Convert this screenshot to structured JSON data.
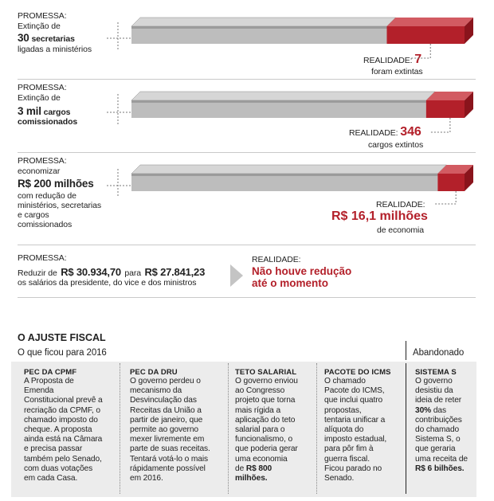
{
  "promises": [
    {
      "label": "PROMESSA:",
      "line1": "Extinção de",
      "big": "30",
      "big_suffix": " secretarias",
      "line3": "ligadas a ministérios",
      "reality_label": "REALIDADE:",
      "reality_value": "7",
      "reality_note": "foram extintas"
    },
    {
      "label": "PROMESSA:",
      "line1": "Extinção de",
      "big": "3 mil",
      "big_suffix": " cargos",
      "line3": "comissionados",
      "reality_label": "REALIDADE:",
      "reality_value": "346",
      "reality_note": "cargos extintos"
    },
    {
      "label": "PROMESSA:",
      "line1": "economizar",
      "big": "R$ 200 milhões",
      "line3": "com redução de",
      "line4": "ministérios, secretarias",
      "line5": "e cargos",
      "line6": "comissionados",
      "reality_label": "REALIDADE:",
      "reality_value": "R$ 16,1 milhões",
      "reality_note": "de economia"
    }
  ],
  "salary": {
    "label": "PROMESSA:",
    "pre": "Reduzir de",
    "from": "R$ 30.934,70",
    "mid": "para",
    "to": "R$ 27.841,23",
    "line2": "os salários da presidente, do vice e dos ministros",
    "reality_label": "REALIDADE:",
    "reality_line1": "Não houve redução",
    "reality_line2": "até o momento"
  },
  "chart_data": {
    "type": "bar",
    "categories": [
      "Secretarias",
      "Cargos comissionados",
      "Economia"
    ],
    "series": [
      {
        "name": "PROMESSA",
        "values": [
          30,
          3000,
          200
        ]
      },
      {
        "name": "REALIDADE",
        "values": [
          7,
          346,
          16.1
        ]
      }
    ]
  },
  "colors": {
    "bar_gray": "#bdbdbd",
    "bar_gray_top": "#9c9c9c",
    "bar_gray_edge": "#8a8a8a",
    "bar_red": "#b3202a",
    "bar_red_top": "#d25b62",
    "bar_red_side": "#8a141c",
    "panel": "#ececec"
  },
  "fiscal": {
    "title": "O AJUSTE FISCAL",
    "subtitle": "O que ficou para 2016",
    "abandoned": "Abandonado",
    "columns": [
      {
        "title": "PEC DA CPMF",
        "lines": [
          "A Proposta de",
          "Emenda",
          "Constitucional prevê a",
          "recriação da CPMF, o",
          "chamado imposto do",
          "cheque. A proposta",
          "ainda está na Câmara",
          "e precisa passar",
          "também pelo Senado,",
          "com duas votações",
          "em cada Casa."
        ]
      },
      {
        "title": "PEC DA DRU",
        "lines": [
          "O governo perdeu o",
          "mecanismo da",
          "Desvinculação das",
          "Receitas da União a",
          "partir de janeiro, que",
          "permite ao governo",
          "mexer livremente em",
          "parte de suas receitas.",
          "Tentará votá-lo o mais",
          "rápidamente possível",
          "em 2016."
        ]
      },
      {
        "title": "TETO SALARIAL",
        "lines": [
          "O governo enviou",
          "ao Congresso",
          "projeto que torna",
          "mais rígida a",
          "aplicação do teto",
          "salarial para o",
          "funcionalismo, o",
          "que poderia gerar",
          "uma economia",
          "de",
          "milhões."
        ],
        "highlight_pre": "de ",
        "highlight": "R$ 800",
        "highlight_post": "milhões."
      },
      {
        "title": "PACOTE DO ICMS",
        "lines": [
          "O chamado",
          "Pacote do ICMS,",
          "que inclui quatro",
          "propostas,",
          "tentaria unificar a",
          "alíquota do",
          "imposto estadual,",
          "para pôr fim à",
          "guerra fiscal.",
          "Ficou parado no",
          "Senado."
        ]
      },
      {
        "title": "SISTEMA S",
        "lines": [
          "O governo",
          "desistiu da",
          "ideia de reter",
          "das",
          "contribuições",
          "do chamado",
          "Sistema S, o",
          "que geraria",
          "uma receita de"
        ],
        "pct": "30%",
        "final": "R$ 6 bilhões."
      }
    ]
  }
}
